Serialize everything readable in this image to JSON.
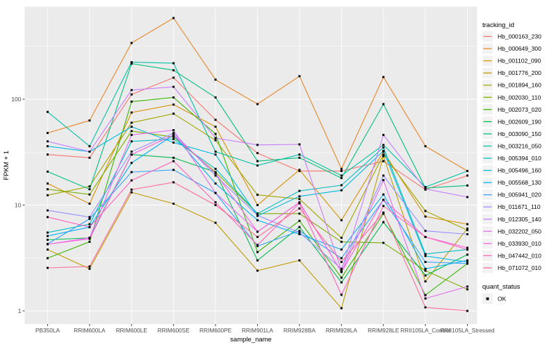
{
  "chart_data": {
    "type": "line",
    "title": "",
    "xlabel": "sample_name",
    "ylabel": "FPKM + 1",
    "y_scale": "log10",
    "y_tick_labels": [
      "1",
      "10",
      "100"
    ],
    "y_ticks": [
      1,
      10,
      100
    ],
    "y_minor_ticks": [
      3.1623,
      31.623,
      316.23
    ],
    "ylim": [
      0.75,
      750
    ],
    "grid": true,
    "legend_position": "right",
    "categories": [
      "PB350LA",
      "RRIM600LA",
      "RRIM600LE",
      "RRIM600SE",
      "RRIM600PE",
      "RRIM901LA",
      "RRIM928BA",
      "RRIM928LA",
      "RRIM928LE",
      "RRII105LA_Control",
      "RRII105LA_Stressed"
    ],
    "series": [
      {
        "name": "Hb_000163_230",
        "color": "#F8766D",
        "values": [
          30,
          28,
          111,
          160,
          64,
          31,
          21,
          21,
          26,
          14,
          19
        ]
      },
      {
        "name": "Hb_000649_300",
        "color": "#E88526",
        "values": [
          48,
          63,
          340,
          585,
          153,
          90,
          165,
          22,
          162,
          36,
          21
        ]
      },
      {
        "name": "Hb_001102_090",
        "color": "#D89000",
        "values": [
          16,
          10.3,
          75,
          89,
          55,
          10,
          21.5,
          7.2,
          32,
          7.8,
          6.6
        ]
      },
      {
        "name": "Hb_001776_200",
        "color": "#C09B00",
        "values": [
          3.8,
          2.5,
          13.2,
          10.3,
          6.8,
          2.4,
          3.0,
          1.06,
          29,
          1.9,
          6.0
        ]
      },
      {
        "name": "Hb_001894_160",
        "color": "#A3A500",
        "values": [
          12.4,
          15,
          60,
          73,
          41,
          12.5,
          11.4,
          4.9,
          30,
          8.8,
          5.8
        ]
      },
      {
        "name": "Hb_002030_110",
        "color": "#7CAE00",
        "values": [
          14.1,
          12.6,
          50,
          44,
          20.5,
          8.3,
          8.3,
          4.5,
          4.4,
          2.4,
          1.6
        ]
      },
      {
        "name": "Hb_002073_020",
        "color": "#39B600",
        "values": [
          3.15,
          4.5,
          95,
          104,
          47,
          3.6,
          7.1,
          2.06,
          8.3,
          1.41,
          2.8
        ]
      },
      {
        "name": "Hb_002609_190",
        "color": "#00BB4E",
        "values": [
          4.7,
          4.9,
          30,
          28,
          20.5,
          3.0,
          6.2,
          1.86,
          6.9,
          2.16,
          3.4
        ]
      },
      {
        "name": "Hb_003090_150",
        "color": "#00BF7D",
        "values": [
          20.7,
          14.1,
          217,
          188,
          104,
          26,
          28,
          18,
          90,
          14.5,
          15.3
        ]
      },
      {
        "name": "Hb_003216_050",
        "color": "#00C1A3",
        "values": [
          76,
          36,
          224,
          219,
          32,
          23.7,
          30,
          19,
          37,
          14.8,
          21
        ]
      },
      {
        "name": "Hb_005394_010",
        "color": "#00BFC4",
        "values": [
          5.5,
          6.6,
          40,
          42,
          22,
          8.3,
          13.6,
          15.4,
          35,
          3.45,
          3.8
        ]
      },
      {
        "name": "Hb_005496_160",
        "color": "#00BAE0",
        "values": [
          36,
          32,
          55,
          39,
          30,
          7.9,
          12.1,
          13.8,
          32.5,
          3.3,
          2.9
        ]
      },
      {
        "name": "Hb_005568_130",
        "color": "#00B0F6",
        "values": [
          5.1,
          6.2,
          25,
          46,
          16,
          7.2,
          5.3,
          3.8,
          12.6,
          2.5,
          3.0
        ]
      },
      {
        "name": "Hb_005941_020",
        "color": "#35A2FF",
        "values": [
          4.3,
          7.4,
          20.5,
          21.5,
          13,
          4.1,
          5.7,
          3.15,
          11.2,
          2.9,
          2.8
        ]
      },
      {
        "name": "Hb_011671_110",
        "color": "#9590FF",
        "values": [
          8.9,
          7.7,
          32,
          48,
          19,
          8.0,
          5.5,
          2.5,
          19,
          5.7,
          5.3
        ]
      },
      {
        "name": "Hb_012305_140",
        "color": "#C77CFF",
        "values": [
          40,
          32,
          122,
          131,
          43,
          37,
          37.5,
          2.4,
          46,
          14.2,
          11.9
        ]
      },
      {
        "name": "Hb_032202_050",
        "color": "#E76BF3",
        "values": [
          4.26,
          4.9,
          46,
          51,
          13,
          5.6,
          10.6,
          2.33,
          17.2,
          1.31,
          1.7
        ]
      },
      {
        "name": "Hb_033930_010",
        "color": "#FA62DB",
        "values": [
          4.26,
          4.8,
          30,
          46,
          20,
          5.6,
          10.6,
          2.33,
          11.2,
          5.0,
          3.95
        ]
      },
      {
        "name": "Hb_047442_010",
        "color": "#FF62BC",
        "values": [
          7.7,
          6.2,
          17.1,
          26,
          10.6,
          4.2,
          10.4,
          1.42,
          9.8,
          5.0,
          3.8
        ]
      },
      {
        "name": "Hb_071072_010",
        "color": "#FF6A98",
        "values": [
          2.55,
          2.63,
          14,
          16.4,
          10,
          5.0,
          9.3,
          2.9,
          8.5,
          1.08,
          1.0
        ]
      }
    ],
    "legend": {
      "color_title": "tracking_id",
      "shape_title": "quant_status",
      "shape_entries": [
        {
          "label": "OK",
          "shape": "filled-square",
          "color": "#000000"
        }
      ]
    },
    "point_shape": "square",
    "point_color": "#000000"
  },
  "theme": {
    "panel_bg": "#EBEBEB",
    "grid_color": "#FFFFFF",
    "tick_text_color": "#4D4D4D",
    "axis_title_color": "#000000",
    "legend_key_bg": "#F2F2F2",
    "tick_mark_color": "#333333"
  }
}
